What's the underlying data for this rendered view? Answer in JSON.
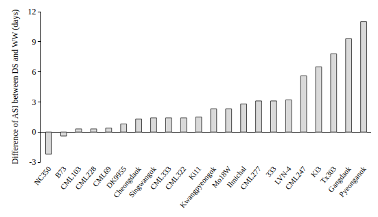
{
  "chart_data": {
    "type": "bar",
    "y_label": "Difference of ASI between DS and WW (days)",
    "categories": [
      "NC350",
      "B73",
      "CML103",
      "CML228",
      "CML69",
      "DK9955",
      "Cheongdaok",
      "Singwangok",
      "CML333",
      "CML322",
      "Ki11",
      "Kwangpyeongok",
      "Mo18W",
      "Ilmichal",
      "CML277",
      "333",
      "LVN-4",
      "CML247",
      "Ki3",
      "Tx303",
      "Gangdaok",
      "Pyeonganok"
    ],
    "values": [
      -2.2,
      -0.4,
      0.3,
      0.3,
      0.4,
      0.8,
      1.3,
      1.4,
      1.4,
      1.4,
      1.5,
      2.3,
      2.3,
      2.8,
      3.1,
      3.1,
      3.2,
      5.6,
      6.5,
      7.8,
      9.3,
      11.0
    ],
    "color": "#d9d9d9",
    "ylim": [
      -3,
      12
    ],
    "yticks": [
      -3,
      0,
      3,
      6,
      9,
      12
    ],
    "grid": false
  }
}
